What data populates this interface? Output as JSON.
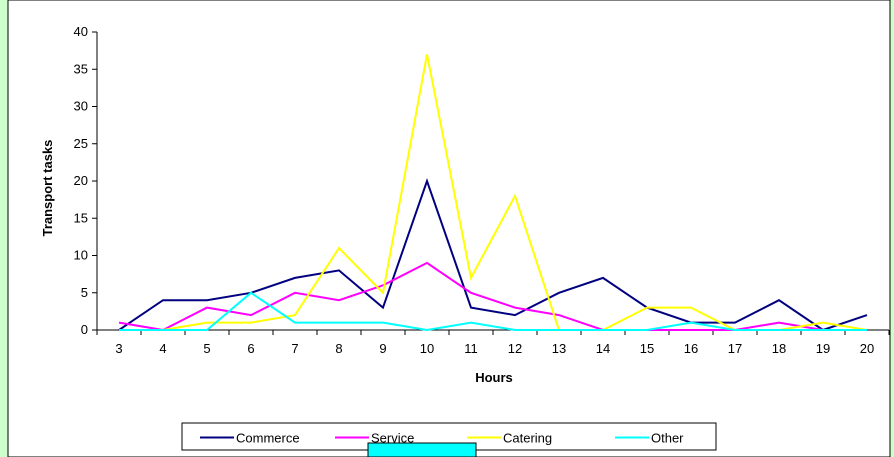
{
  "chart_data": {
    "type": "line",
    "title": "",
    "xlabel": "Hours",
    "ylabel": "Transport tasks",
    "x": [
      3,
      4,
      5,
      6,
      7,
      8,
      9,
      10,
      11,
      12,
      13,
      14,
      15,
      16,
      17,
      18,
      19,
      20
    ],
    "ylim": [
      0,
      40
    ],
    "yticks": [
      0,
      5,
      10,
      15,
      20,
      25,
      30,
      35,
      40
    ],
    "grid": false,
    "legend_position": "bottom",
    "series": [
      {
        "name": "Commerce",
        "color": "#000080",
        "values": [
          0,
          4,
          4,
          5,
          7,
          8,
          3,
          20,
          3,
          2,
          5,
          7,
          3,
          1,
          1,
          4,
          0,
          2
        ]
      },
      {
        "name": "Service",
        "color": "#ff00ff",
        "values": [
          1,
          0,
          3,
          2,
          5,
          4,
          6,
          9,
          5,
          3,
          2,
          0,
          0,
          0,
          0,
          1,
          0,
          0
        ]
      },
      {
        "name": "Catering",
        "color": "#ffff00",
        "values": [
          0,
          0,
          1,
          1,
          2,
          11,
          5,
          37,
          7,
          18,
          0,
          0,
          3,
          3,
          0,
          0,
          1,
          0
        ]
      },
      {
        "name": "Other",
        "color": "#00ffff",
        "values": [
          0,
          0,
          0,
          5,
          1,
          1,
          1,
          0,
          1,
          0,
          0,
          0,
          0,
          1,
          0,
          0,
          0,
          0
        ]
      }
    ]
  },
  "colors": {
    "background": "#ccffcc",
    "plot_area": "#ffffff",
    "overlay_box": "#00ffff"
  }
}
